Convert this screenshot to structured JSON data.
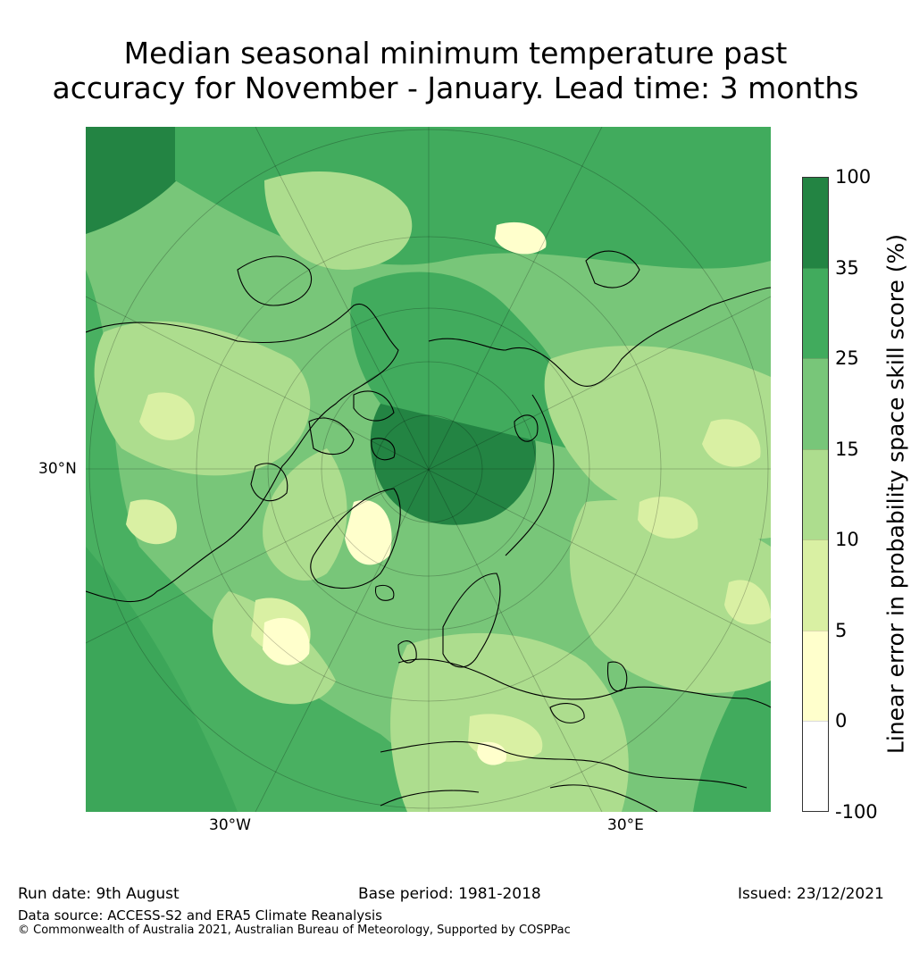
{
  "title_line1": "Median seasonal minimum temperature past",
  "title_line2": "accuracy for November - January. Lead time: 3 months",
  "map": {
    "projection": "north polar stereographic",
    "lat_label": "30°N",
    "lon_labels": [
      "30°W",
      "30°E"
    ],
    "colors": {
      "lvl_neg": "#ffffff",
      "lvl0": "#ffffcc",
      "lvl5": "#d9f0a3",
      "lvl10": "#addd8e",
      "lvl15": "#78c679",
      "lvl25": "#41ab5d",
      "lvl35": "#238443",
      "coast": "#000000"
    }
  },
  "colorbar": {
    "axis_label": "Linear error in probability space skill score (%)",
    "ticks": [
      "100",
      "35",
      "25",
      "15",
      "10",
      "5",
      "0",
      "-100"
    ],
    "bins": [
      {
        "from": 35,
        "to": 100,
        "color": "#238443"
      },
      {
        "from": 25,
        "to": 35,
        "color": "#41ab5d"
      },
      {
        "from": 15,
        "to": 25,
        "color": "#78c679"
      },
      {
        "from": 10,
        "to": 15,
        "color": "#addd8e"
      },
      {
        "from": 5,
        "to": 10,
        "color": "#d9f0a3"
      },
      {
        "from": 0,
        "to": 5,
        "color": "#ffffcc"
      },
      {
        "from": -100,
        "to": 0,
        "color": "#ffffff"
      }
    ]
  },
  "footer": {
    "run_date": "Run date: 9th August",
    "base_period": "Base period: 1981-2018",
    "issued": "Issued: 23/12/2021",
    "data_source": "Data source: ACCESS-S2 and ERA5 Climate Reanalysis",
    "copyright": "© Commonwealth of Australia 2021, Australian Bureau of Meteorology, Supported by COSPPac"
  }
}
